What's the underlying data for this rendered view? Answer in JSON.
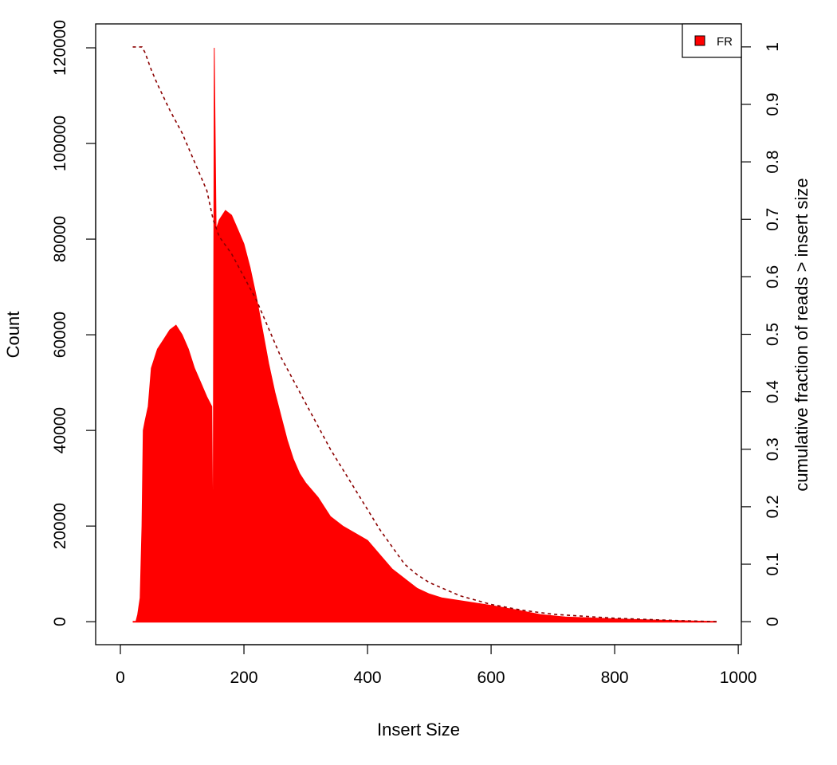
{
  "chart_data": {
    "type": "area",
    "xlabel": "Insert Size",
    "ylabel": "Count",
    "y2label": "cumulative fraction of reads > insert size",
    "xlim": [
      -40,
      1005
    ],
    "ylim": [
      -4800,
      125000
    ],
    "y2lim": [
      -0.04,
      1.04
    ],
    "x_ticks": [
      0,
      200,
      400,
      600,
      800,
      1000
    ],
    "y_ticks": [
      0,
      20000,
      40000,
      60000,
      80000,
      100000,
      120000
    ],
    "y2_ticks": [
      0,
      0.1,
      0.2,
      0.3,
      0.4,
      0.5,
      0.6,
      0.7,
      0.8,
      0.9,
      1
    ],
    "legend": {
      "position": "top-right",
      "entries": [
        {
          "label": "FR",
          "color": "#ff0000"
        }
      ]
    },
    "colors": {
      "histogram": "#ff0000",
      "cumulative": "#8b0000"
    },
    "series": [
      {
        "name": "FR",
        "kind": "histogram",
        "points": [
          [
            20,
            0
          ],
          [
            25,
            0
          ],
          [
            28,
            1500
          ],
          [
            32,
            5000
          ],
          [
            35,
            20000
          ],
          [
            37,
            40000
          ],
          [
            40,
            42000
          ],
          [
            45,
            45000
          ],
          [
            50,
            53000
          ],
          [
            60,
            57000
          ],
          [
            70,
            59000
          ],
          [
            80,
            61000
          ],
          [
            90,
            62000
          ],
          [
            100,
            60000
          ],
          [
            110,
            57000
          ],
          [
            120,
            53000
          ],
          [
            130,
            50000
          ],
          [
            140,
            47000
          ],
          [
            148,
            45000
          ],
          [
            150,
            11000
          ],
          [
            152,
            120000
          ],
          [
            155,
            82000
          ],
          [
            160,
            84000
          ],
          [
            170,
            86000
          ],
          [
            180,
            85000
          ],
          [
            190,
            82000
          ],
          [
            200,
            79000
          ],
          [
            210,
            74000
          ],
          [
            220,
            68000
          ],
          [
            230,
            61000
          ],
          [
            240,
            54000
          ],
          [
            250,
            48000
          ],
          [
            260,
            43000
          ],
          [
            270,
            38000
          ],
          [
            280,
            34000
          ],
          [
            290,
            31000
          ],
          [
            300,
            29000
          ],
          [
            320,
            26000
          ],
          [
            340,
            22000
          ],
          [
            360,
            20000
          ],
          [
            380,
            18500
          ],
          [
            400,
            17000
          ],
          [
            420,
            14000
          ],
          [
            440,
            11000
          ],
          [
            460,
            9000
          ],
          [
            480,
            7000
          ],
          [
            500,
            5800
          ],
          [
            520,
            5000
          ],
          [
            560,
            4200
          ],
          [
            600,
            3400
          ],
          [
            640,
            2500
          ],
          [
            680,
            1500
          ],
          [
            720,
            1000
          ],
          [
            760,
            800
          ],
          [
            800,
            600
          ],
          [
            850,
            400
          ],
          [
            900,
            250
          ],
          [
            965,
            0
          ]
        ]
      },
      {
        "name": "cumulative fraction",
        "kind": "cumulative",
        "axis": "right",
        "points": [
          [
            20,
            1.0
          ],
          [
            35,
            1.0
          ],
          [
            40,
            0.99
          ],
          [
            50,
            0.96
          ],
          [
            60,
            0.935
          ],
          [
            80,
            0.89
          ],
          [
            100,
            0.85
          ],
          [
            120,
            0.8
          ],
          [
            140,
            0.75
          ],
          [
            150,
            0.7
          ],
          [
            160,
            0.67
          ],
          [
            180,
            0.64
          ],
          [
            200,
            0.6
          ],
          [
            220,
            0.56
          ],
          [
            240,
            0.51
          ],
          [
            260,
            0.46
          ],
          [
            280,
            0.42
          ],
          [
            300,
            0.38
          ],
          [
            320,
            0.34
          ],
          [
            340,
            0.3
          ],
          [
            360,
            0.265
          ],
          [
            380,
            0.23
          ],
          [
            400,
            0.195
          ],
          [
            420,
            0.16
          ],
          [
            440,
            0.13
          ],
          [
            460,
            0.1
          ],
          [
            480,
            0.082
          ],
          [
            500,
            0.068
          ],
          [
            550,
            0.045
          ],
          [
            600,
            0.03
          ],
          [
            650,
            0.02
          ],
          [
            700,
            0.013
          ],
          [
            800,
            0.006
          ],
          [
            900,
            0.002
          ],
          [
            965,
            0.0
          ]
        ]
      }
    ]
  }
}
